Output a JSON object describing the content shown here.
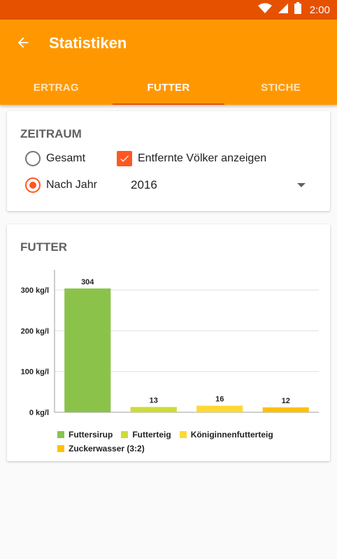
{
  "status": {
    "time": "2:00"
  },
  "appbar": {
    "title": "Statistiken"
  },
  "tabs": [
    {
      "label": "ERTRAG",
      "active": false
    },
    {
      "label": "FUTTER",
      "active": true
    },
    {
      "label": "STICHE",
      "active": false
    }
  ],
  "zeitraum": {
    "title": "ZEITRAUM",
    "option_gesamt": "Gesamt",
    "option_nach_jahr": "Nach Jahr",
    "selected_option": "Nach Jahr",
    "show_removed_label": "Entfernte Völker anzeigen",
    "show_removed_checked": true,
    "year_value": "2016"
  },
  "futter": {
    "title": "FUTTER"
  },
  "colors": {
    "primary": "#ff9800",
    "primary_dark": "#e65100",
    "accent": "#ff5722"
  },
  "chart_data": {
    "type": "bar",
    "categories": [
      "Futtersirup",
      "Futterteig",
      "Königinnenfutterteig",
      "Zuckerwasser (3:2)"
    ],
    "values": [
      304,
      13,
      16,
      12
    ],
    "colors": [
      "#8bc34a",
      "#cddc39",
      "#fdd835",
      "#ffc107"
    ],
    "ylabel_unit": "kg/l",
    "yticks": [
      0,
      100,
      200,
      300
    ],
    "ytick_labels": [
      "0 kg/l",
      "100 kg/l",
      "200 kg/l",
      "300 kg/l"
    ],
    "ylim": [
      0,
      350
    ],
    "grid": true,
    "legend_position": "bottom",
    "legend": [
      "Futtersirup",
      "Futterteig",
      "Königinnenfutterteig",
      "Zuckerwasser (3:2)"
    ]
  }
}
